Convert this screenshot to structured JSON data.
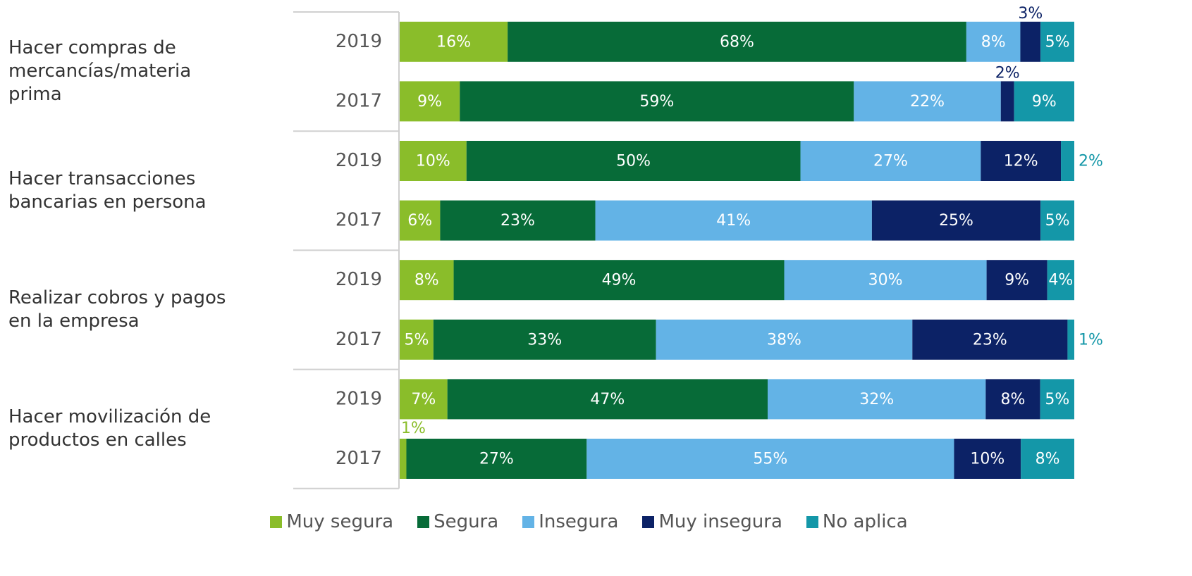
{
  "chart_data": {
    "type": "stacked_barh",
    "groups": [
      "Hacer compras de mercancías/materia prima",
      "Hacer transacciones bancarias en persona",
      "Realizar cobros y pagos en la empresa",
      "Hacer movilización de productos en calles"
    ],
    "categories": [
      "2019",
      "2017",
      "2019",
      "2017",
      "2019",
      "2017",
      "2019",
      "2017"
    ],
    "series": [
      {
        "name": "Muy segura",
        "color": "#8abd2a",
        "values": [
          16,
          9,
          10,
          6,
          8,
          5,
          7,
          1
        ],
        "value_labels": [
          "16%",
          "9%",
          "10%",
          "6%",
          "8%",
          "5%",
          "7%",
          "1%"
        ]
      },
      {
        "name": "Segura",
        "color": "#076b38",
        "values": [
          68,
          59,
          50,
          23,
          49,
          33,
          47,
          27
        ],
        "value_labels": [
          "68%",
          "59%",
          "50%",
          "23%",
          "49%",
          "33%",
          "47%",
          "27%"
        ]
      },
      {
        "name": "Insegura",
        "color": "#63b3e6",
        "values": [
          8,
          22,
          27,
          41,
          30,
          38,
          32,
          55
        ],
        "value_labels": [
          "8%",
          "22%",
          "27%",
          "41%",
          "30%",
          "38%",
          "32%",
          "55%"
        ]
      },
      {
        "name": "Muy insegura",
        "color": "#0c2266",
        "values": [
          3,
          2,
          12,
          25,
          9,
          23,
          8,
          10
        ],
        "value_labels": [
          "3%",
          "2%",
          "12%",
          "25%",
          "9%",
          "23%",
          "8%",
          "10%"
        ]
      },
      {
        "name": "No aplica",
        "color": "#1497a8",
        "values": [
          5,
          9,
          2,
          5,
          4,
          1,
          5,
          8
        ],
        "value_labels": [
          "5%",
          "9%",
          "2%",
          "5%",
          "4%",
          "1%",
          "5%",
          "8%"
        ]
      }
    ]
  }
}
